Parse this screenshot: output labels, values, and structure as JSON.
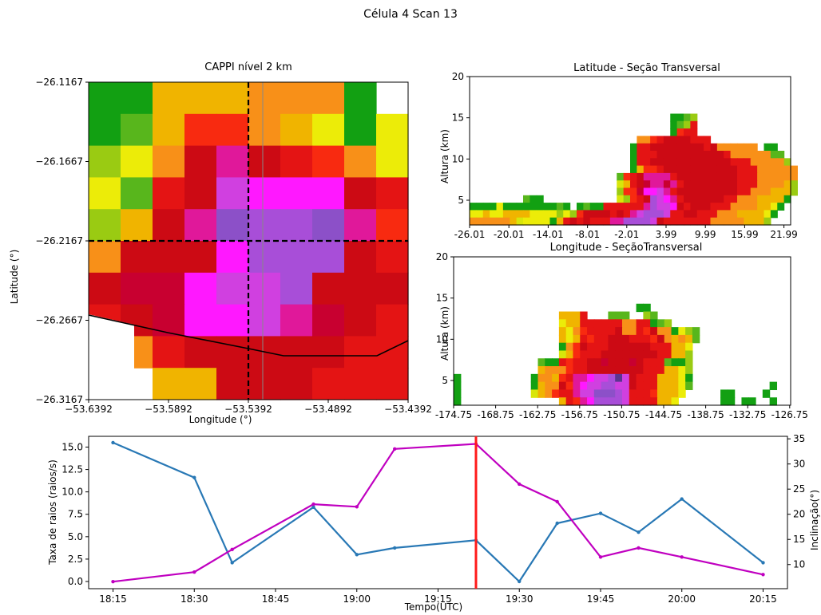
{
  "figure": {
    "suptitle": "Célula 4 Scan 13"
  },
  "colors": {
    "series_blue": "#2878b5",
    "series_magenta": "#c000c0",
    "marker_red": "#ff1a1a"
  },
  "cappi": {
    "title": "CAPPI nível 2 km",
    "xlabel": "Longitude (°)",
    "ylabel": "Latitude (°)",
    "xticks": [
      "−53.6392",
      "−53.5892",
      "−53.5392",
      "−53.4892",
      "−53.4392"
    ],
    "yticks": [
      "−26.1167",
      "−26.1667",
      "−26.2167",
      "−26.2667",
      "−26.3167"
    ],
    "crosshair": {
      "lon": -53.5392,
      "lat": -26.2167
    }
  },
  "lat_section": {
    "title": "Latitude - Seção Transversal",
    "ylabel": "Altura (km)",
    "yticks": [
      "5",
      "10",
      "15",
      "20"
    ],
    "xticks": [
      "-26.01",
      "-20.01",
      "-14.01",
      "-8.01",
      "-2.01",
      "3.99",
      "9.99",
      "15.99",
      "21.99"
    ]
  },
  "lon_section": {
    "title": "Longitude - SeçãoTransversal",
    "ylabel": "Altura (km)",
    "yticks": [
      "5",
      "10",
      "15",
      "20"
    ],
    "xticks": [
      "-174.75",
      "-168.75",
      "-162.75",
      "-156.75",
      "-150.75",
      "-144.75",
      "-138.75",
      "-132.75",
      "-126.75"
    ]
  },
  "chart_data": {
    "type": "line",
    "xlabel": "Tempo(UTC)",
    "ylabel_left": "Taxa de raios (raios/s)",
    "ylabel_right": "Inclinação(°)",
    "x_ticks": [
      "18:15",
      "18:30",
      "18:45",
      "19:00",
      "19:15",
      "19:30",
      "19:45",
      "20:00",
      "20:15"
    ],
    "y_left_ticks": [
      "0.0",
      "2.5",
      "5.0",
      "7.5",
      "10.0",
      "12.5",
      "15.0"
    ],
    "y_right_ticks": [
      "10",
      "15",
      "20",
      "25",
      "30",
      "35"
    ],
    "ylim_left": [
      -0.8,
      16.2
    ],
    "ylim_right": [
      5.2,
      35.5
    ],
    "current_time": "19:22",
    "series": [
      {
        "axis": "left",
        "x": [
          "18:15",
          "18:30",
          "18:37",
          "18:52",
          "19:00",
          "19:07",
          "19:22",
          "19:30",
          "19:37",
          "19:45",
          "19:52",
          "20:00",
          "20:15"
        ],
        "values": [
          15.5,
          11.6,
          2.1,
          8.3,
          3.0,
          3.75,
          4.6,
          0.0,
          6.5,
          7.6,
          5.5,
          9.2,
          2.1
        ]
      },
      {
        "axis": "right",
        "x": [
          "18:15",
          "18:30",
          "18:37",
          "18:52",
          "19:00",
          "19:07",
          "19:22",
          "19:30",
          "19:37",
          "19:45",
          "19:52",
          "20:00",
          "20:15"
        ],
        "values": [
          6.6,
          8.5,
          13.0,
          22.0,
          21.5,
          33.0,
          34.0,
          26.0,
          22.5,
          11.5,
          13.3,
          11.5,
          8.0
        ]
      }
    ]
  }
}
